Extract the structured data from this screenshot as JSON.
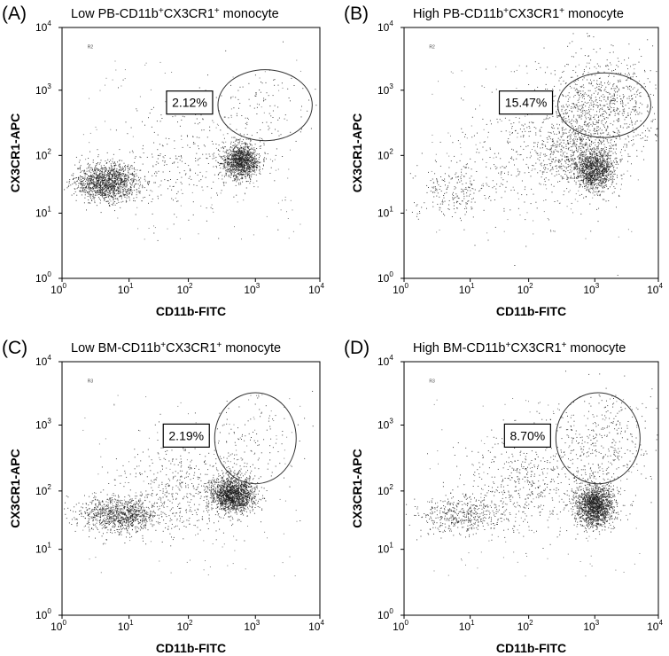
{
  "chart_data": [
    {
      "type": "scatter",
      "panel_label": "(A)",
      "title_prefix": "Low PB-CD11b",
      "title_sup1": "+",
      "title_mid": "CX3CR1",
      "title_sup2": "+",
      "title_suffix": " monocyte",
      "xlabel": "CD11b-FITC",
      "ylabel": "CX3CR1-APC",
      "x_scale": "log",
      "y_scale": "log",
      "xlim": [
        1,
        10000
      ],
      "ylim": [
        1,
        10000
      ],
      "gate_tag": "R2",
      "gate_percent_label": "2.12%",
      "gate_ellipse": {
        "center_log": [
          3.15,
          2.77
        ],
        "radius_log": [
          0.72,
          0.55
        ]
      },
      "populations": [
        {
          "center_log": [
            0.67,
            1.54
          ],
          "spread_log": [
            0.24,
            0.16
          ],
          "density": 1400
        },
        {
          "center_log": [
            2.78,
            1.9
          ],
          "spread_log": [
            0.14,
            0.15
          ],
          "density": 1200
        },
        {
          "center_log": [
            1.9,
            2.0
          ],
          "spread_log": [
            0.6,
            0.4
          ],
          "density": 300
        },
        {
          "center_log": [
            3.1,
            2.75
          ],
          "spread_log": [
            0.4,
            0.35
          ],
          "density": 110
        }
      ]
    },
    {
      "type": "scatter",
      "panel_label": "(B)",
      "title_prefix": "High PB-CD11b",
      "title_sup1": "+",
      "title_mid": "CX3CR1",
      "title_sup2": "+",
      "title_suffix": " monocyte",
      "xlabel": "CD11b-FITC",
      "ylabel": "CX3CR1-APC",
      "x_scale": "log",
      "y_scale": "log",
      "xlim": [
        1,
        10000
      ],
      "ylim": [
        1,
        10000
      ],
      "gate_tag": "R2",
      "gate_percent_label": "15.47%",
      "gate_ellipse": {
        "center_log": [
          3.15,
          2.77
        ],
        "radius_log": [
          0.72,
          0.5
        ]
      },
      "populations": [
        {
          "center_log": [
            0.7,
            1.4
          ],
          "spread_log": [
            0.3,
            0.25
          ],
          "density": 220
        },
        {
          "center_log": [
            3.0,
            1.75
          ],
          "spread_log": [
            0.15,
            0.18
          ],
          "density": 1100
        },
        {
          "center_log": [
            2.7,
            2.1
          ],
          "spread_log": [
            0.3,
            0.3
          ],
          "density": 600
        },
        {
          "center_log": [
            3.15,
            2.8
          ],
          "spread_log": [
            0.45,
            0.4
          ],
          "density": 800
        },
        {
          "center_log": [
            2.0,
            2.0
          ],
          "spread_log": [
            0.6,
            0.5
          ],
          "density": 350
        }
      ]
    },
    {
      "type": "scatter",
      "panel_label": "(C)",
      "title_prefix": "Low BM-CD11b",
      "title_sup1": "+",
      "title_mid": "CX3CR1",
      "title_sup2": "+",
      "title_suffix": " monocyte",
      "xlabel": "CD11b-FITC",
      "ylabel": "CX3CR1-APC",
      "x_scale": "log",
      "y_scale": "log",
      "xlim": [
        1,
        10000
      ],
      "ylim": [
        1,
        10000
      ],
      "gate_tag": "R3",
      "gate_percent_label": "2.19%",
      "gate_ellipse": {
        "center_log": [
          3.0,
          2.8
        ],
        "radius_log": [
          0.62,
          0.7
        ]
      },
      "populations": [
        {
          "center_log": [
            0.85,
            1.6
          ],
          "spread_log": [
            0.3,
            0.15
          ],
          "density": 1000
        },
        {
          "center_log": [
            2.65,
            1.95
          ],
          "spread_log": [
            0.17,
            0.15
          ],
          "density": 1600
        },
        {
          "center_log": [
            1.9,
            2.0
          ],
          "spread_log": [
            0.55,
            0.4
          ],
          "density": 500
        },
        {
          "center_log": [
            2.9,
            2.7
          ],
          "spread_log": [
            0.4,
            0.35
          ],
          "density": 120
        }
      ]
    },
    {
      "type": "scatter",
      "panel_label": "(D)",
      "title_prefix": "High BM-CD11b",
      "title_sup1": "+",
      "title_mid": "CX3CR1",
      "title_sup2": "+",
      "title_suffix": " monocyte",
      "xlabel": "CD11b-FITC",
      "ylabel": "CX3CR1-APC",
      "x_scale": "log",
      "y_scale": "log",
      "xlim": [
        1,
        10000
      ],
      "ylim": [
        1,
        10000
      ],
      "gate_tag": "R3",
      "gate_percent_label": "8.70%",
      "gate_ellipse": {
        "center_log": [
          3.05,
          2.8
        ],
        "radius_log": [
          0.65,
          0.7
        ]
      },
      "populations": [
        {
          "center_log": [
            0.85,
            1.6
          ],
          "spread_log": [
            0.35,
            0.18
          ],
          "density": 450
        },
        {
          "center_log": [
            3.0,
            1.75
          ],
          "spread_log": [
            0.15,
            0.18
          ],
          "density": 1600
        },
        {
          "center_log": [
            2.0,
            2.1
          ],
          "spread_log": [
            0.55,
            0.4
          ],
          "density": 500
        },
        {
          "center_log": [
            3.1,
            2.75
          ],
          "spread_log": [
            0.45,
            0.4
          ],
          "density": 350
        }
      ]
    }
  ]
}
